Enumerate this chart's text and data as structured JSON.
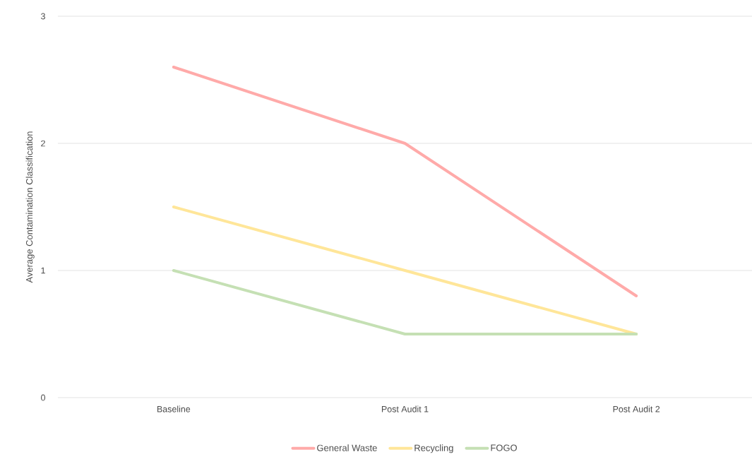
{
  "chart_data": {
    "type": "line",
    "ylabel": "Average Contamination Classification",
    "categories": [
      "Baseline",
      "Post Audit 1",
      "Post Audit 2"
    ],
    "series": [
      {
        "name": "General Waste",
        "color": "#ffaaa9",
        "values": [
          2.6,
          2.0,
          0.8
        ]
      },
      {
        "name": "Recycling",
        "color": "#ffe699",
        "values": [
          1.5,
          1.0,
          0.5
        ]
      },
      {
        "name": "FOGO",
        "color": "#c5e0b4",
        "values": [
          1.0,
          0.5,
          0.5
        ]
      }
    ],
    "ylim": [
      0,
      3
    ],
    "yticks": [
      0,
      1,
      2,
      3
    ],
    "grid": "y",
    "legend": "bottom",
    "marker": "none",
    "line_style": "solid"
  }
}
